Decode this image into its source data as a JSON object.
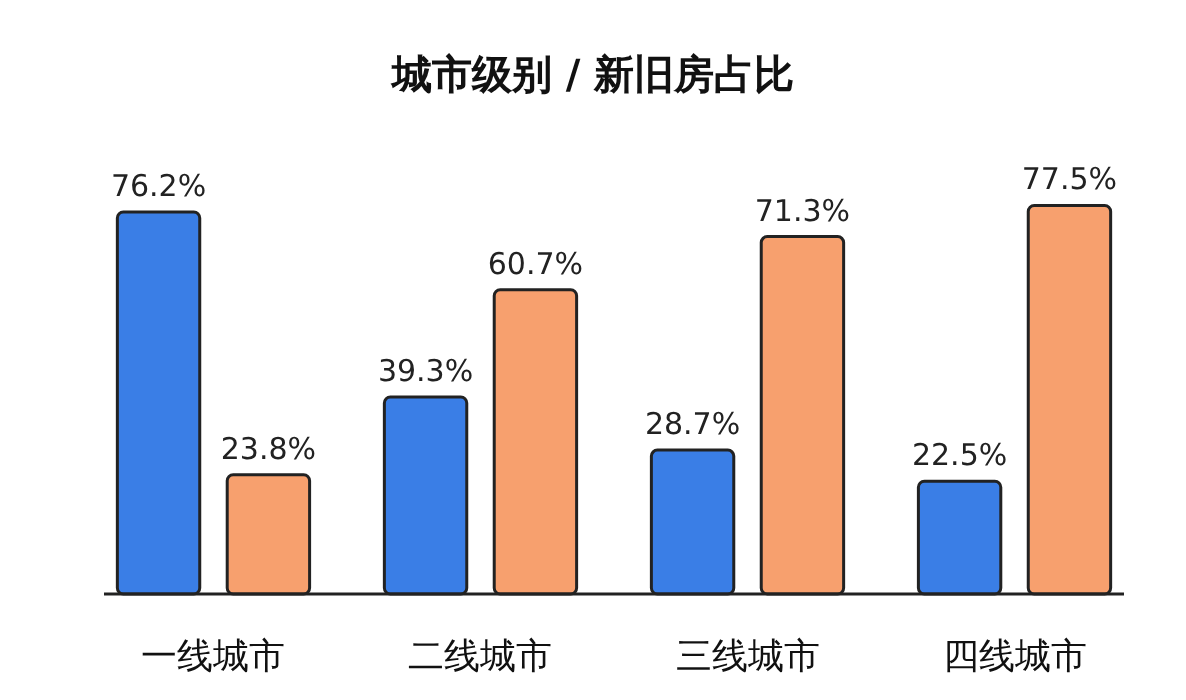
{
  "chart_data": {
    "type": "bar",
    "title": "城市级别 / 新旧房占比",
    "categories": [
      "一线城市",
      "二线城市",
      "三线城市",
      "四线城市"
    ],
    "series": [
      {
        "color": "#3a7ee6",
        "values": [
          76.2,
          39.3,
          28.7,
          22.5
        ],
        "value_labels": [
          "76.2%",
          "39.3%",
          "28.7%",
          "22.5%"
        ]
      },
      {
        "color": "#f7a06e",
        "values": [
          23.8,
          60.7,
          71.3,
          77.5
        ],
        "value_labels": [
          "23.8%",
          "60.7%",
          "71.3%",
          "77.5%"
        ]
      }
    ]
  }
}
